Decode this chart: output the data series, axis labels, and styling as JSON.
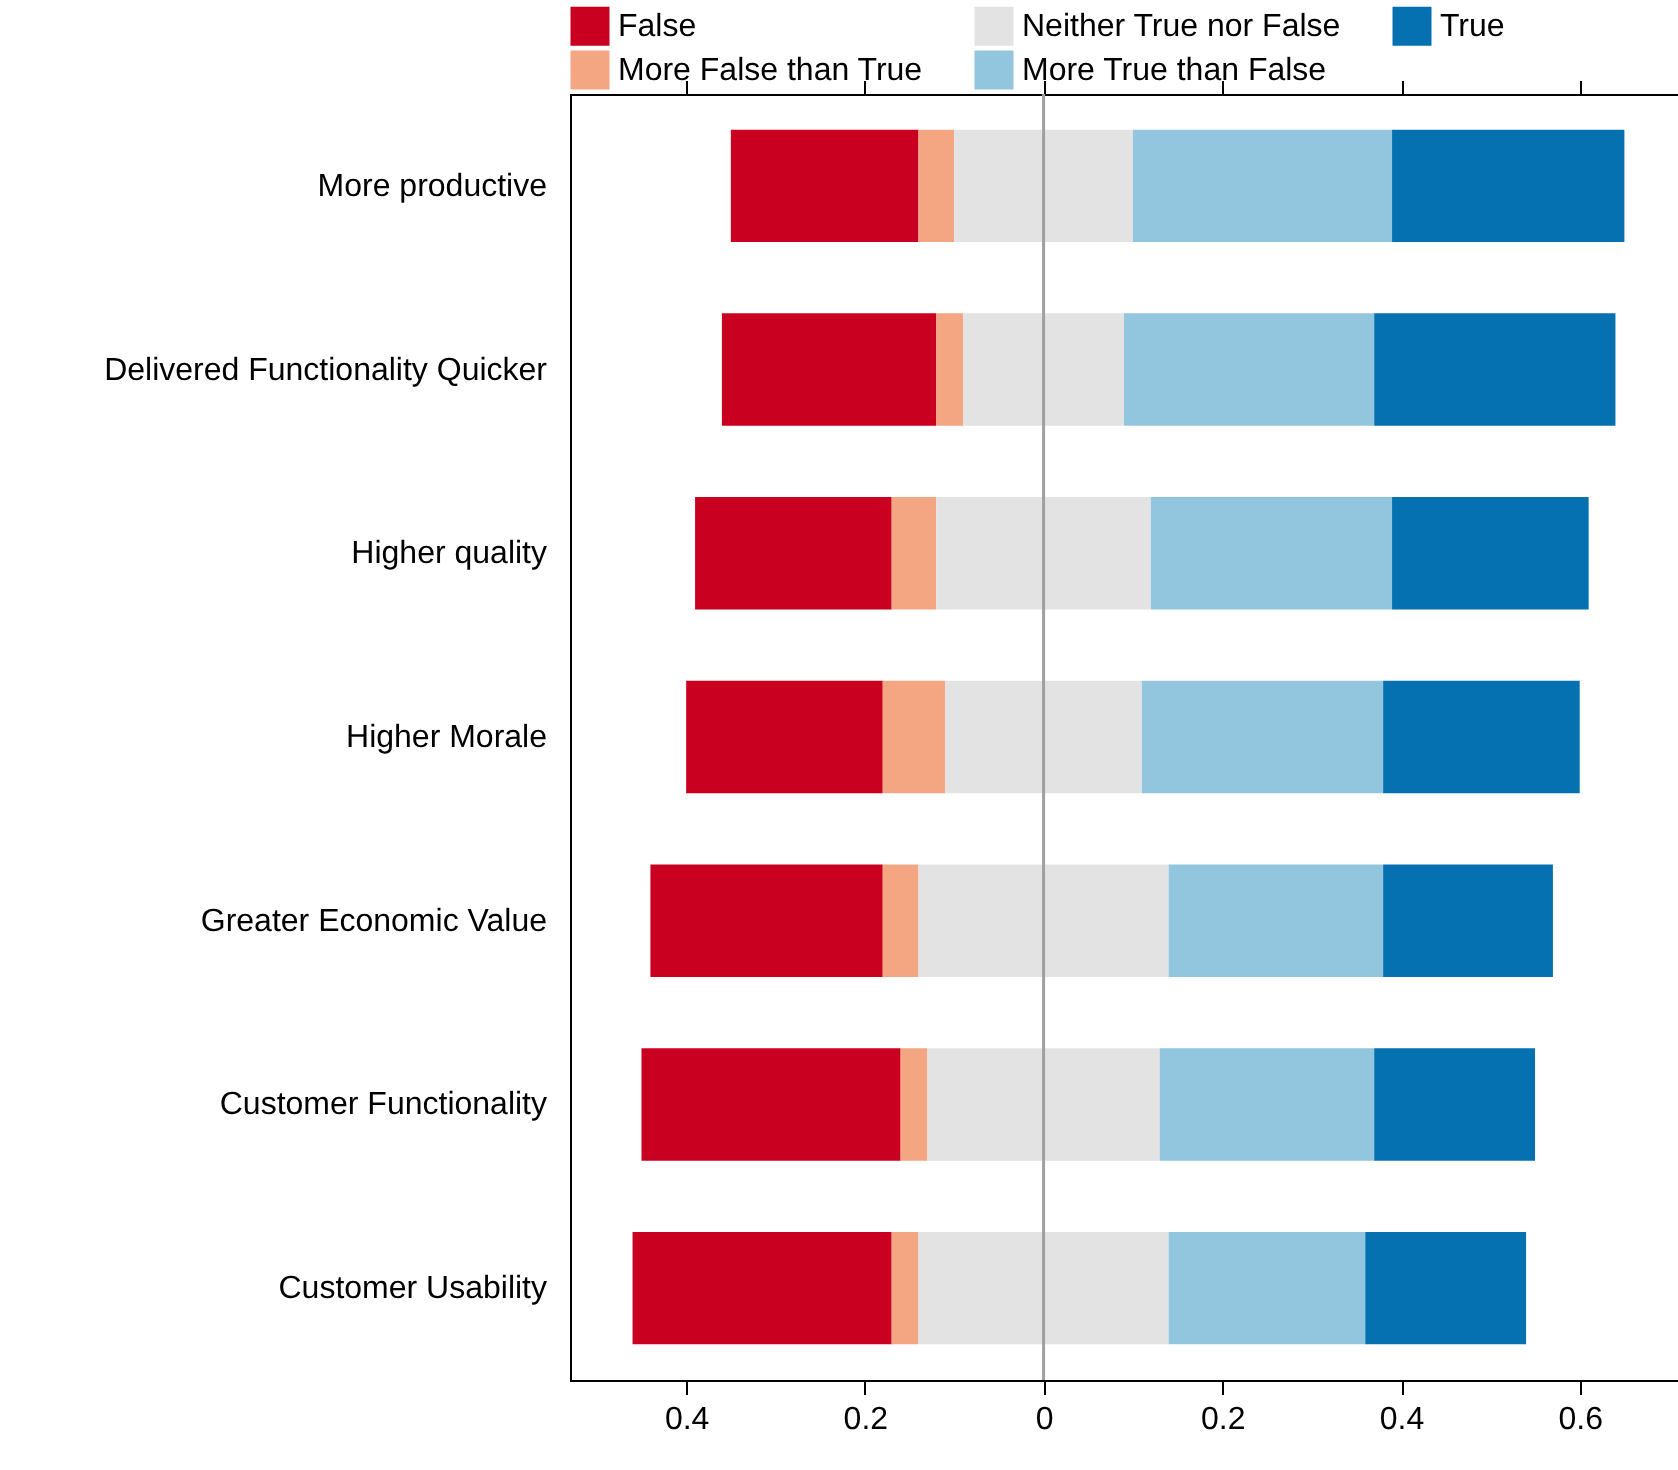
{
  "chart_data": {
    "type": "bar",
    "orientation": "horizontal",
    "categories": [
      "More productive",
      "Delivered Functionality Quicker",
      "Higher quality",
      "Higher Morale",
      "Greater Economic Value",
      "Customer Functionality",
      "Customer Usability"
    ],
    "series": [
      {
        "name": "False",
        "color": "#ca0020",
        "base": [
          -0.35,
          -0.36,
          -0.39,
          -0.4,
          -0.44,
          -0.45,
          -0.46
        ],
        "values": [
          0.21,
          0.24,
          0.22,
          0.22,
          0.26,
          0.29,
          0.29
        ]
      },
      {
        "name": "More False than True",
        "color": "#f4a582",
        "base": [
          -0.14,
          -0.12,
          -0.17,
          -0.18,
          -0.18,
          -0.16,
          -0.17
        ],
        "values": [
          0.04,
          0.03,
          0.05,
          0.07,
          0.04,
          0.03,
          0.03
        ]
      },
      {
        "name": "Neither True nor False",
        "color": "#e3e3e3",
        "base": [
          -0.1,
          -0.09,
          -0.12,
          -0.11,
          -0.14,
          -0.13,
          -0.14
        ],
        "values": [
          0.2,
          0.18,
          0.24,
          0.22,
          0.28,
          0.26,
          0.28
        ]
      },
      {
        "name": "More True than False",
        "color": "#92c5de",
        "base": [
          0.1,
          0.09,
          0.12,
          0.11,
          0.14,
          0.13,
          0.14
        ],
        "values": [
          0.29,
          0.28,
          0.27,
          0.27,
          0.24,
          0.24,
          0.22
        ]
      },
      {
        "name": "True",
        "color": "#0571b0",
        "base": [
          0.39,
          0.37,
          0.39,
          0.38,
          0.38,
          0.37,
          0.36
        ],
        "values": [
          0.26,
          0.27,
          0.22,
          0.22,
          0.19,
          0.18,
          0.18
        ]
      }
    ],
    "xlim": [
      -0.53,
      0.71
    ],
    "xticks": [
      {
        "value": -0.4,
        "label": "0.4"
      },
      {
        "value": -0.2,
        "label": "0.2"
      },
      0,
      0.2,
      0.4,
      0.6
    ],
    "ref_lines": [
      {
        "axis": "x",
        "value": 0,
        "color": "#a0a0a0"
      }
    ],
    "grid": false,
    "legend": "top"
  }
}
